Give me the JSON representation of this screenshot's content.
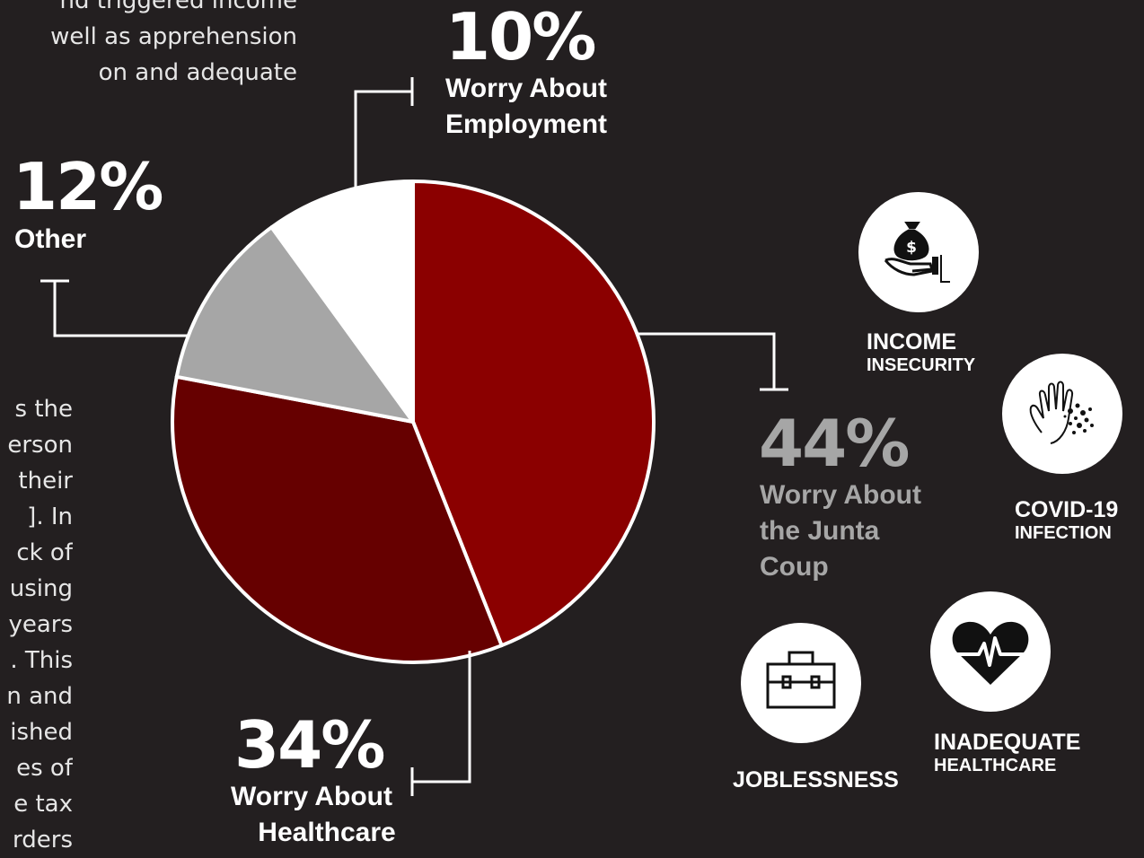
{
  "paragraph_top": [
    "nd triggered income",
    "well as apprehension",
    "on and adequate"
  ],
  "paragraph_left": [
    "s the",
    "erson",
    "their",
    "]. In",
    "ck of",
    "using",
    "years",
    ". This",
    "n and",
    "ished",
    "es of",
    "e tax",
    "rders"
  ],
  "chart_data": {
    "type": "pie",
    "title": "",
    "slices": [
      {
        "label": "Worry About the Junta Coup",
        "value": 44,
        "color": "#8b0000"
      },
      {
        "label": "Worry About Healthcare",
        "value": 34,
        "color": "#660000"
      },
      {
        "label": "Other",
        "value": 12,
        "color": "#a6a6a6"
      },
      {
        "label": "Worry About Employment",
        "value": 10,
        "color": "#ffffff"
      }
    ]
  },
  "callouts": {
    "employment": {
      "pct": "10%",
      "lines": [
        "Worry About",
        "Employment"
      ]
    },
    "other": {
      "pct": "12%",
      "lines": [
        "Other"
      ]
    },
    "junta": {
      "pct": "44%",
      "lines": [
        "Worry About",
        "the Junta",
        "Coup"
      ],
      "color": "#a6a6a6"
    },
    "healthcare": {
      "pct": "34%",
      "lines": [
        "Worry About",
        "Healthcare"
      ]
    }
  },
  "icons": {
    "income": {
      "icon": "money-bag-hand-icon",
      "line1": "INCOME",
      "line2": "INSECURITY"
    },
    "covid": {
      "icon": "virus-hand-icon",
      "line1": "COVID-19",
      "line2": "INFECTION"
    },
    "jobless": {
      "icon": "briefcase-icon",
      "line1": "JOBLESSNESS"
    },
    "healthcare": {
      "icon": "heartbeat-icon",
      "line1": "INADEQUATE",
      "line2": "HEALTHCARE"
    }
  }
}
